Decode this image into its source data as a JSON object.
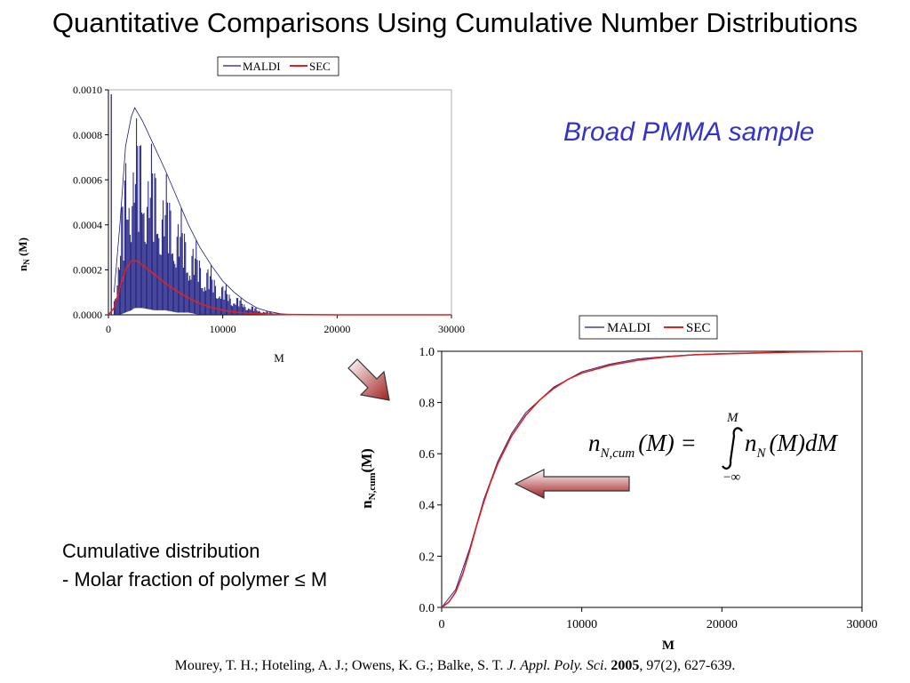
{
  "slide": {
    "title": "Quantitative Comparisons Using Cumulative Number Distributions",
    "subtitle": "Broad PMMA sample",
    "cumulative_text": {
      "line1": "Cumulative distribution",
      "line2": "- Molar fraction of polymer ≤ M"
    },
    "equation": {
      "lhs_n": "n",
      "lhs_sub": "N,cum",
      "lhs_arg": "(M) =",
      "upper": "M",
      "lower": "−∞",
      "rhs_n": "n",
      "rhs_sub": "N",
      "rhs_arg": "(M)dM"
    },
    "citation": {
      "authors": "Mourey, T. H.; Hoteling, A. J.; Owens, K. G.; Balke, S. T. ",
      "journal": "J. Appl. Poly. Sci",
      "dot": ". ",
      "year": "2005",
      "rest": ", 97(2), 627-639."
    }
  },
  "colors": {
    "maldi": "#1a1a80",
    "sec": "#e02020",
    "subtitle": "#3333cc",
    "arrow_top": "#ffffff",
    "arrow_bottom": "#a02020"
  },
  "chart_data": [
    {
      "type": "line",
      "title": "",
      "xlabel": "M",
      "ylabel_main": "n",
      "ylabel_sub": "N",
      "ylabel_arg": " (M)",
      "xlim": [
        0,
        30000
      ],
      "ylim": [
        0,
        0.001
      ],
      "xticks": [
        "0",
        "10000",
        "20000",
        "30000"
      ],
      "yticks": [
        "0.0000",
        "0.0002",
        "0.0004",
        "0.0006",
        "0.0008",
        "0.0010"
      ],
      "legend": {
        "placement": "top",
        "entries": [
          "MALDI",
          "SEC"
        ]
      },
      "series": [
        {
          "name": "MALDI",
          "note": "dense oscillating spectrum; upper envelope",
          "x": [
            500,
            1000,
            1500,
            2000,
            2300,
            3000,
            4000,
            5000,
            6000,
            7000,
            8000,
            9000,
            10000,
            11000,
            12000,
            13000,
            14000,
            15000,
            16000
          ],
          "y": [
            0.0001,
            0.0004,
            0.00075,
            0.00088,
            0.00092,
            0.00086,
            0.00075,
            0.00064,
            0.00052,
            0.0004,
            0.0003,
            0.00022,
            0.00015,
            0.0001,
            6e-05,
            3e-05,
            1.5e-05,
            5e-06,
            0.0
          ],
          "y_lower": [
            0.0,
            0.0,
            1e-05,
            2e-05,
            3e-05,
            3e-05,
            2e-05,
            2e-05,
            1e-05,
            1e-05,
            0.0,
            0.0,
            0.0,
            0.0,
            0.0,
            0.0,
            0.0,
            0.0,
            0.0
          ]
        },
        {
          "name": "SEC",
          "x": [
            0,
            500,
            1000,
            1500,
            2000,
            2500,
            3000,
            4000,
            5000,
            6000,
            7000,
            8000,
            9000,
            10000,
            11000,
            12000,
            13000,
            14000,
            16000,
            20000,
            25000,
            30000
          ],
          "y": [
            0.0,
            3e-05,
            0.00012,
            0.0002,
            0.00024,
            0.00024,
            0.00022,
            0.00018,
            0.00014,
            0.000105,
            7.5e-05,
            5e-05,
            3.3e-05,
            2e-05,
            1.3e-05,
            8e-06,
            5e-06,
            3e-06,
            1e-06,
            0.0,
            0.0,
            0.0
          ]
        }
      ]
    },
    {
      "type": "line",
      "title": "",
      "xlabel": "M",
      "ylabel_main": "n",
      "ylabel_sub": "N,cum",
      "ylabel_arg": "(M)",
      "xlim": [
        0,
        30000
      ],
      "ylim": [
        0,
        1.0
      ],
      "xticks": [
        "0",
        "10000",
        "20000",
        "30000"
      ],
      "yticks": [
        "0.0",
        "0.2",
        "0.4",
        "0.6",
        "0.8",
        "1.0"
      ],
      "legend": {
        "placement": "top",
        "entries": [
          "MALDI",
          "SEC"
        ]
      },
      "series": [
        {
          "name": "SEC",
          "x": [
            0,
            500,
            1000,
            1500,
            2000,
            2500,
            3000,
            3500,
            4000,
            5000,
            6000,
            7000,
            8000,
            9000,
            10000,
            12000,
            14000,
            16000,
            18000,
            20000,
            25000,
            30000
          ],
          "y": [
            0.0,
            0.02,
            0.06,
            0.13,
            0.22,
            0.32,
            0.41,
            0.49,
            0.56,
            0.67,
            0.75,
            0.81,
            0.855,
            0.89,
            0.915,
            0.945,
            0.965,
            0.978,
            0.986,
            0.99,
            0.997,
            1.0
          ]
        },
        {
          "name": "MALDI",
          "x": [
            0,
            1000,
            2000,
            3000,
            4000,
            5000,
            6000,
            8000,
            10000,
            12000,
            14000,
            16000,
            18000,
            20000,
            25000,
            30000
          ],
          "y": [
            0.0,
            0.07,
            0.23,
            0.42,
            0.57,
            0.68,
            0.76,
            0.86,
            0.92,
            0.95,
            0.97,
            0.98,
            0.987,
            0.991,
            0.997,
            1.0
          ]
        }
      ]
    }
  ]
}
